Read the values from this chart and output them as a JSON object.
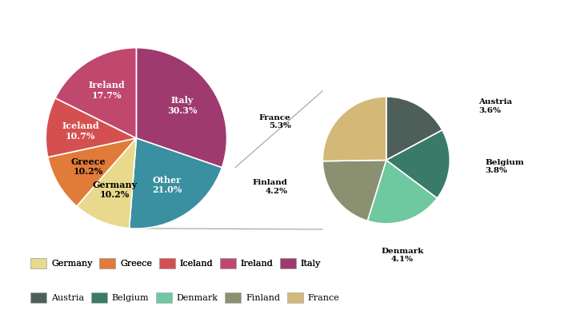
{
  "main_labels": [
    "Italy",
    "Other",
    "Germany",
    "Greece",
    "Iceland",
    "Ireland"
  ],
  "main_values": [
    30.3,
    21.0,
    10.2,
    10.2,
    10.7,
    17.7
  ],
  "main_colors": [
    "#9e3a6e",
    "#3a8fa0",
    "#e8d98c",
    "#e07b3a",
    "#d45050",
    "#c0476e"
  ],
  "main_text_colors": [
    "white",
    "white",
    "black",
    "black",
    "white",
    "white"
  ],
  "sub_labels": [
    "Austria",
    "Belgium",
    "Denmark",
    "Finland",
    "France"
  ],
  "sub_values": [
    3.6,
    3.8,
    4.1,
    4.2,
    5.3
  ],
  "sub_colors": [
    "#4e5e58",
    "#3a7a68",
    "#6ec8a0",
    "#8a9070",
    "#d4b878"
  ],
  "sub_text_colors": [
    "black",
    "black",
    "black",
    "black",
    "black"
  ],
  "legend_entries": [
    {
      "label": "Germany",
      "color": "#e8d98c"
    },
    {
      "label": "Greece",
      "color": "#e07b3a"
    },
    {
      "label": "Iceland",
      "color": "#d45050"
    },
    {
      "label": "Ireland",
      "color": "#c0476e"
    },
    {
      "label": "Italy",
      "color": "#9e3a6e"
    },
    {
      "label": "Austria",
      "color": "#4e5e58"
    },
    {
      "label": "Belgium",
      "color": "#3a7a68"
    },
    {
      "label": "Denmark",
      "color": "#6ec8a0"
    },
    {
      "label": "Finland",
      "color": "#8a9070"
    },
    {
      "label": "France",
      "color": "#d4b878"
    }
  ],
  "connection_color": "#a0a0a0",
  "background_color": "#ffffff",
  "label_fontsize": 8,
  "sub_label_fontsize": 7.5
}
